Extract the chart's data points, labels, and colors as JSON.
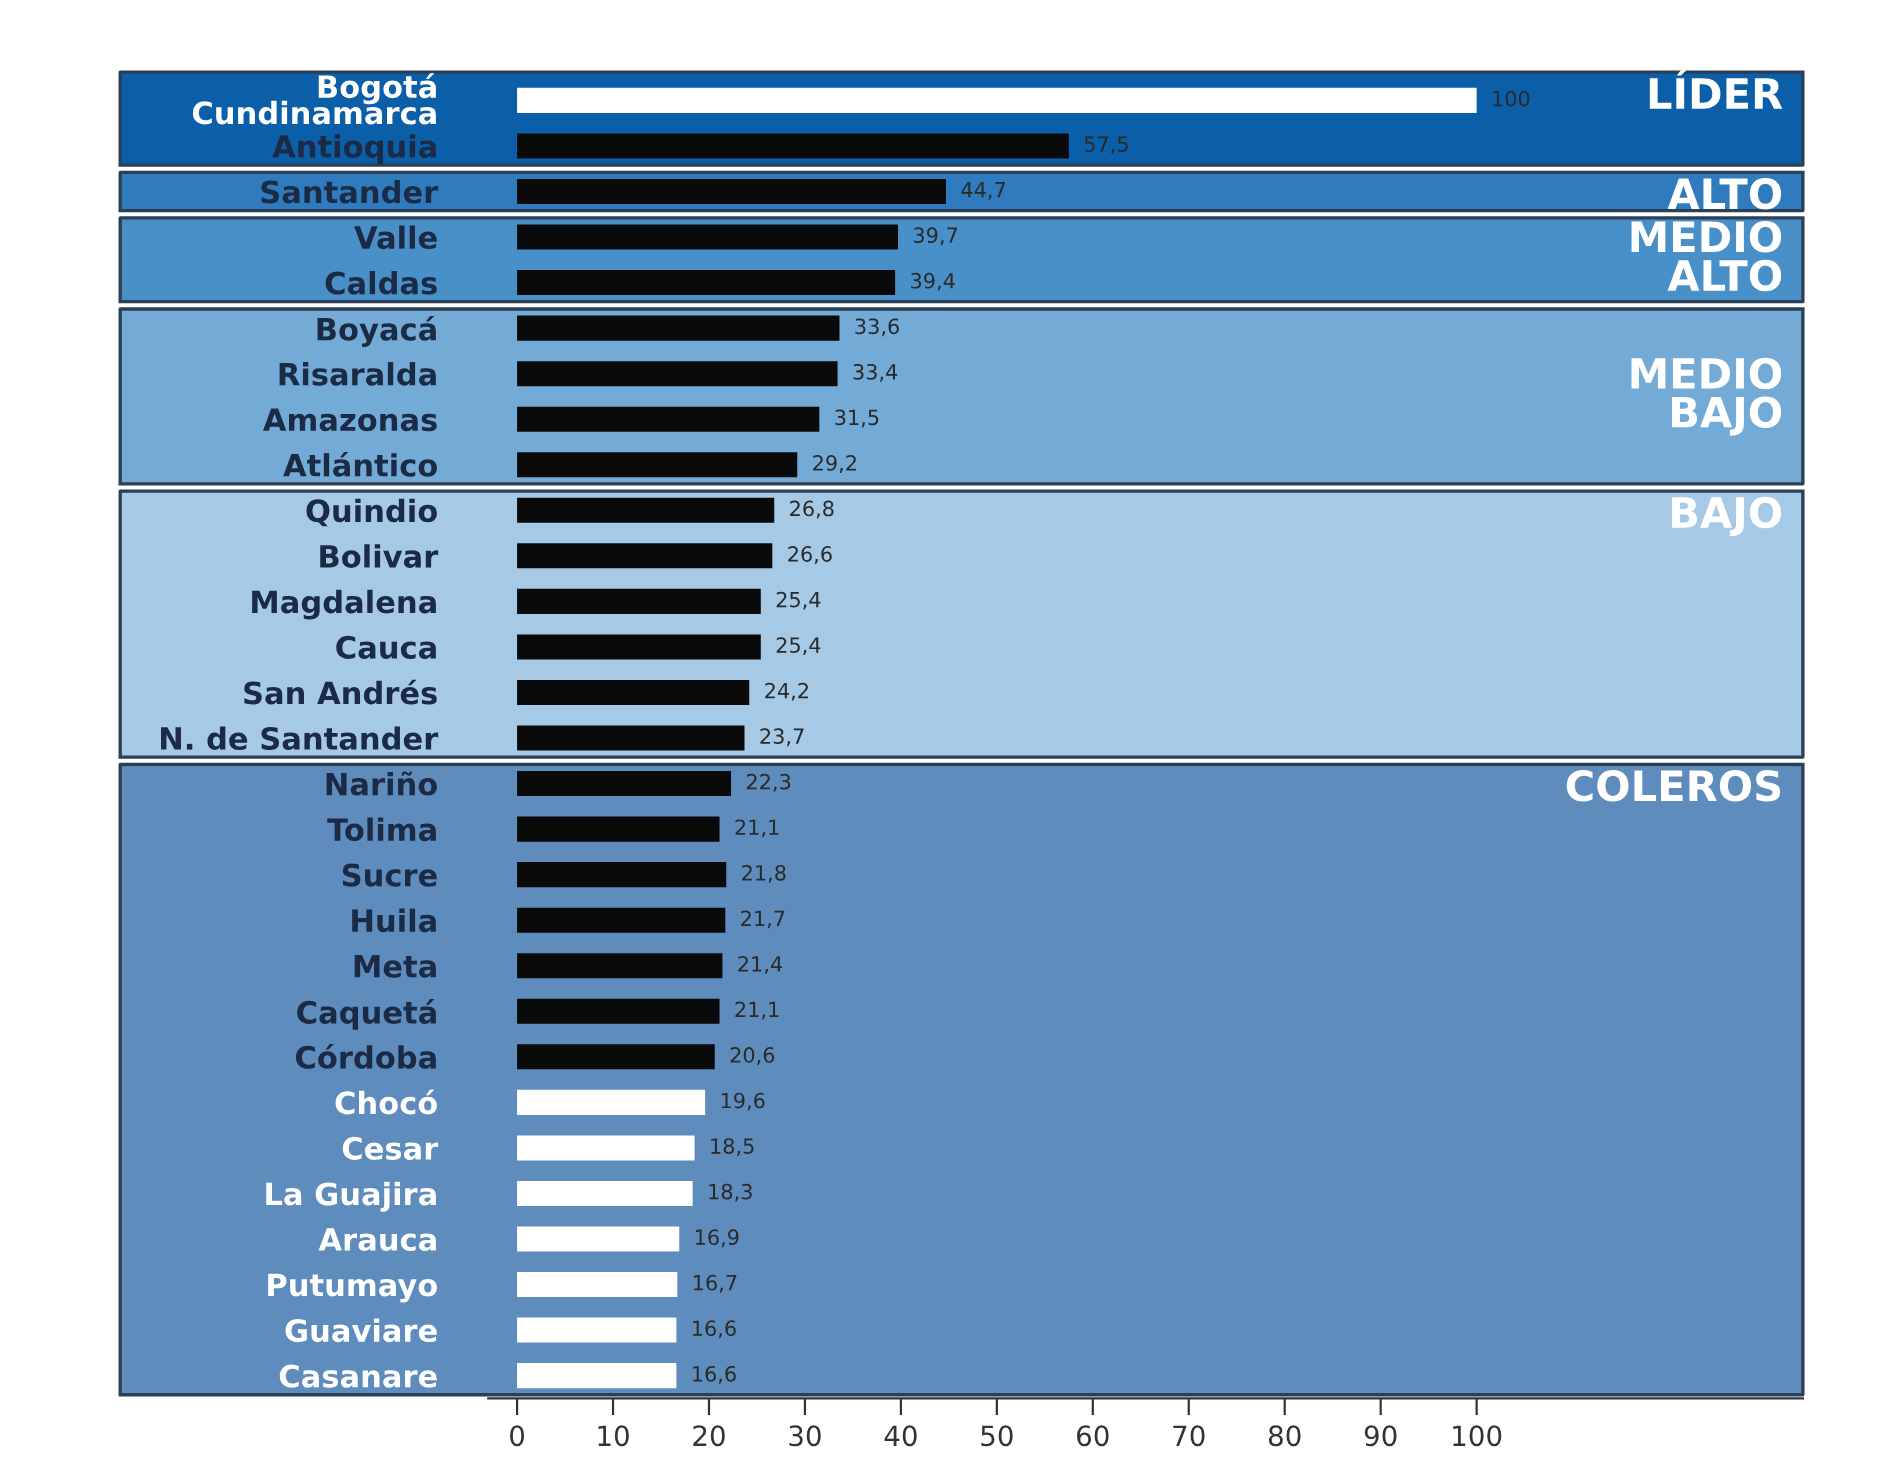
{
  "chart_data": {
    "type": "bar",
    "orientation": "horizontal",
    "categories": [
      "Bogotá\nCundinamarca",
      "Antioquia",
      "Santander",
      "Valle",
      "Caldas",
      "Boyacá",
      "Risaralda",
      "Amazonas",
      "Atlántico",
      "Quindio",
      "Bolivar",
      "Magdalena",
      "Cauca",
      "San Andrés",
      "N. de Santander",
      "Nariño",
      "Tolima",
      "Sucre",
      "Huila",
      "Meta",
      "Caquetá",
      "Córdoba",
      "Chocó",
      "Cesar",
      "La Guajira",
      "Arauca",
      "Putumayo",
      "Guaviare",
      "Casanare"
    ],
    "values": [
      100,
      57.5,
      44.7,
      39.7,
      39.4,
      33.6,
      33.4,
      31.5,
      29.2,
      26.8,
      26.6,
      25.4,
      25.4,
      24.2,
      23.7,
      22.3,
      21.1,
      21.8,
      21.7,
      21.4,
      21.1,
      20.6,
      19.6,
      18.5,
      18.3,
      16.9,
      16.7,
      16.6,
      16.6
    ],
    "value_labels": [
      "100",
      "57,5",
      "44,7",
      "39,7",
      "39,4",
      "33,6",
      "33,4",
      "31,5",
      "29,2",
      "26,8",
      "26,6",
      "25,4",
      "25,4",
      "24,2",
      "23,7",
      "22,3",
      "21,1",
      "21,8",
      "21,7",
      "21,4",
      "21,1",
      "20,6",
      "19,6",
      "18,5",
      "18,3",
      "16,9",
      "16,7",
      "16,6",
      "16,6"
    ],
    "colors": [
      "#ffffff",
      "#0a0a0a",
      "#0a0a0a",
      "#0a0a0a",
      "#0a0a0a",
      "#0a0a0a",
      "#0a0a0a",
      "#0a0a0a",
      "#0a0a0a",
      "#0a0a0a",
      "#0a0a0a",
      "#0a0a0a",
      "#0a0a0a",
      "#0a0a0a",
      "#0a0a0a",
      "#0a0a0a",
      "#0a0a0a",
      "#0a0a0a",
      "#0a0a0a",
      "#0a0a0a",
      "#0a0a0a",
      "#0a0a0a",
      "#ffffff",
      "#ffffff",
      "#ffffff",
      "#ffffff",
      "#ffffff",
      "#ffffff",
      "#ffffff"
    ],
    "xlim": [
      -3,
      134
    ],
    "xticks": [
      0,
      10,
      20,
      30,
      40,
      50,
      60,
      70,
      80,
      90,
      100
    ],
    "grid": false,
    "bands": [
      {
        "axis": "y",
        "from": "Bogotá\nCundinamarca",
        "to": "Antioquia",
        "label": "LÍDER",
        "color": "#0b5fa8"
      },
      {
        "axis": "y",
        "from": "Santander",
        "to": "Santander",
        "label": "ALTO",
        "color": "#2f7bbd"
      },
      {
        "axis": "y",
        "from": "Valle",
        "to": "Caldas",
        "label": "MEDIO\nALTO",
        "color": "#4a90c8"
      },
      {
        "axis": "y",
        "from": "Boyacá",
        "to": "Atlántico",
        "label": "MEDIO\nBAJO",
        "color": "#74aad6"
      },
      {
        "axis": "y",
        "from": "Quindio",
        "to": "N. de Santander",
        "label": "BAJO",
        "color": "#a6c9e6"
      },
      {
        "axis": "y",
        "from": "Nariño",
        "to": "Casanare",
        "label": "COLEROS",
        "color": "#5e8cbd"
      }
    ]
  }
}
